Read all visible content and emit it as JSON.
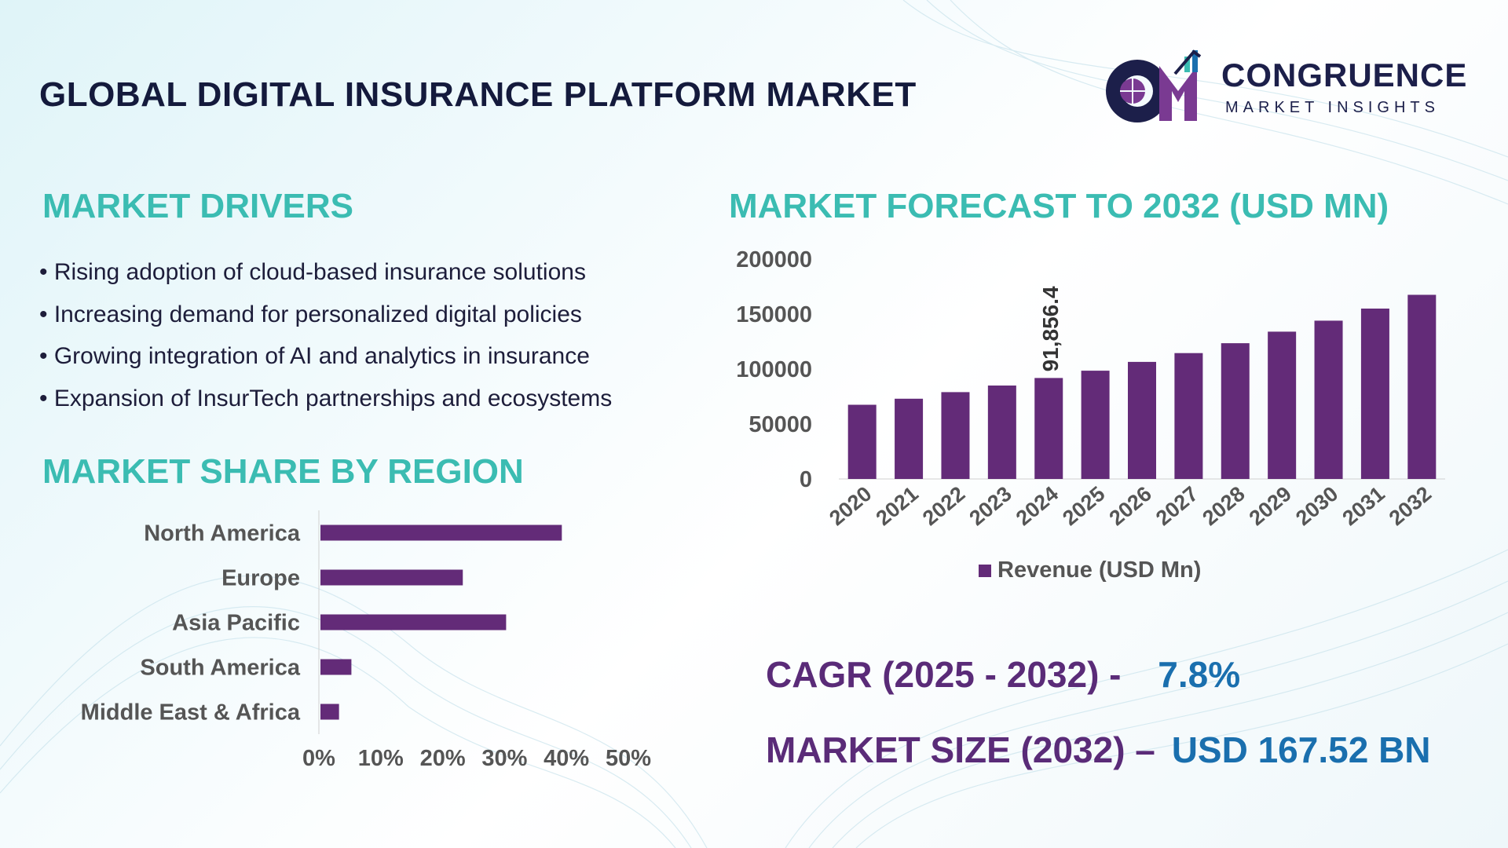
{
  "header": {
    "title": "GLOBAL DIGITAL INSURANCE PLATFORM MARKET",
    "logo_name": "CONGRUENCE",
    "logo_tagline": "MARKET INSIGHTS"
  },
  "drivers": {
    "title": "MARKET DRIVERS",
    "items": [
      "Rising adoption of cloud-based insurance solutions",
      "Increasing demand for personalized digital policies",
      "Growing integration of AI and analytics in insurance",
      "Expansion of InsurTech partnerships and ecosystems"
    ]
  },
  "region": {
    "title": "MARKET SHARE BY REGION"
  },
  "forecast": {
    "title": "MARKET FORECAST TO 2032 (USD MN)"
  },
  "kpis": {
    "cagr_label": "CAGR (2025 - 2032) -",
    "cagr_value": "7.8%",
    "size_label": "MARKET SIZE (2032) –",
    "size_value": "USD 167.52 BN"
  },
  "colors": {
    "bar": "#632b78",
    "accent": "#3bbcb2",
    "title": "#141a3c",
    "kpi_label": "#5a2b78",
    "kpi_value": "#1a6fae"
  },
  "chart_data": [
    {
      "type": "bar",
      "orientation": "horizontal",
      "categories": [
        "North America",
        "Europe",
        "Asia Pacific",
        "South America",
        "Middle East & Africa"
      ],
      "values": [
        39,
        23,
        30,
        5,
        3
      ],
      "xlim": [
        0,
        50
      ],
      "xticks": [
        "0%",
        "10%",
        "20%",
        "30%",
        "40%",
        "50%"
      ]
    },
    {
      "type": "bar",
      "categories": [
        "2020",
        "2021",
        "2022",
        "2023",
        "2024",
        "2025",
        "2026",
        "2027",
        "2028",
        "2029",
        "2030",
        "2031",
        "2032"
      ],
      "series": [
        {
          "name": "Revenue (USD Mn)",
          "values": [
            67500,
            73000,
            79000,
            85000,
            91856.4,
            98500,
            106500,
            114500,
            123500,
            134000,
            144000,
            155000,
            167520
          ]
        }
      ],
      "data_labels": [
        {
          "index": 4,
          "text": "91,856.4"
        }
      ],
      "ylim": [
        0,
        200000
      ],
      "yticks": [
        "0",
        "50000",
        "100000",
        "150000",
        "200000"
      ],
      "legend": "bottom"
    }
  ]
}
